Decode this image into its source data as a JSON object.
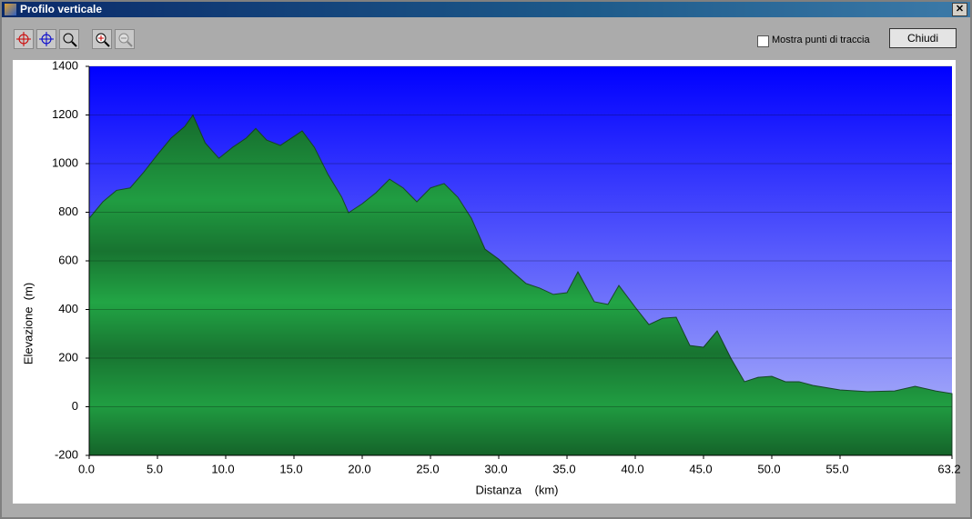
{
  "window": {
    "title": "Profilo verticale",
    "checkbox": "Mostra punti di traccia",
    "button": "Chiudi"
  },
  "chart_data": {
    "type": "area",
    "xlabel": "Distanza    (km)",
    "ylabel": "Elevazione  (m)",
    "x": [
      0,
      1,
      2,
      3,
      4,
      5,
      6,
      7,
      7.6,
      8.5,
      9.5,
      10.5,
      11.5,
      12.2,
      13,
      14,
      15,
      15.6,
      16.5,
      17.5,
      18.5,
      19,
      20,
      21,
      22,
      23,
      24,
      25,
      26,
      27,
      28,
      29,
      30,
      31,
      32,
      33,
      34,
      35,
      35.8,
      37,
      38,
      38.8,
      40,
      41,
      42,
      43,
      44,
      45,
      46,
      47,
      48,
      49,
      50,
      51,
      52,
      53,
      55,
      57,
      59,
      60.5,
      62,
      63.2
    ],
    "values": [
      775,
      843,
      890,
      900,
      965,
      1037,
      1105,
      1153,
      1200,
      1085,
      1022,
      1067,
      1105,
      1145,
      1097,
      1075,
      1112,
      1135,
      1067,
      955,
      862,
      798,
      835,
      880,
      936,
      900,
      843,
      900,
      918,
      862,
      775,
      648,
      607,
      555,
      507,
      488,
      462,
      469,
      555,
      432,
      421,
      499,
      409,
      338,
      364,
      368,
      252,
      245,
      312,
      200,
      103,
      121,
      125,
      103,
      103,
      88,
      69,
      62,
      65,
      84,
      65,
      54
    ],
    "color": "#22a545",
    "xlim": [
      0,
      63.2
    ],
    "ylim": [
      -200,
      1400
    ],
    "xticks": [
      {
        "value": 0,
        "label": "0.0"
      },
      {
        "value": 5,
        "label": "5.0"
      },
      {
        "value": 10,
        "label": "10.0"
      },
      {
        "value": 15,
        "label": "15.0"
      },
      {
        "value": 20,
        "label": "20.0"
      },
      {
        "value": 25,
        "label": "25.0"
      },
      {
        "value": 30,
        "label": "30.0"
      },
      {
        "value": 35,
        "label": "35.0"
      },
      {
        "value": 40,
        "label": "40.0"
      },
      {
        "value": 45,
        "label": "45.0"
      },
      {
        "value": 50,
        "label": "50.0"
      },
      {
        "value": 55,
        "label": "55.0"
      },
      63.2
    ],
    "yticks": [
      -200,
      0,
      200,
      400,
      600,
      800,
      1000,
      1200,
      1400
    ],
    "grid": true
  }
}
